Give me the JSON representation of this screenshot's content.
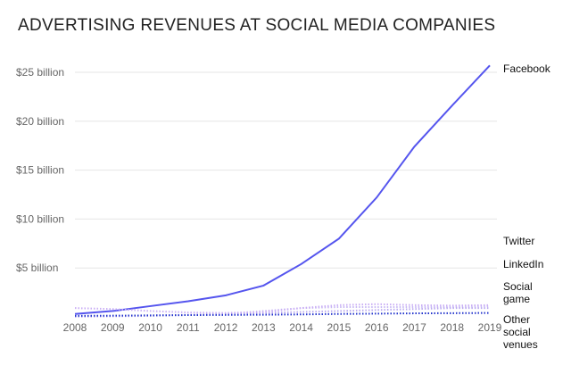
{
  "chart_data": {
    "type": "line",
    "title": "ADVERTISING REVENUES AT SOCIAL MEDIA COMPANIES",
    "xlabel": "",
    "ylabel": "",
    "x": [
      2008,
      2009,
      2010,
      2011,
      2012,
      2013,
      2014,
      2015,
      2016,
      2017,
      2018,
      2019
    ],
    "x_tick_labels": [
      "2008",
      "2009",
      "2010",
      "2011",
      "2012",
      "2013",
      "2014",
      "2015",
      "2016",
      "2017",
      "2018",
      "2019"
    ],
    "y_tick_values": [
      5,
      10,
      15,
      20,
      25
    ],
    "y_tick_labels": [
      "$5 billion",
      "$10 billion",
      "$15 billion",
      "$20 billion",
      "$25 billion"
    ],
    "ylim": [
      0,
      26
    ],
    "grid": true,
    "legend": "direct labels at right",
    "series": [
      {
        "name": "Facebook",
        "color": "#5555ee",
        "style": "solid",
        "values": [
          0.3,
          0.6,
          1.1,
          1.6,
          2.2,
          3.2,
          5.4,
          8.0,
          12.2,
          17.4,
          21.6,
          25.7
        ]
      },
      {
        "name": "Twitter",
        "color": "#c8b8f4",
        "style": "dotted",
        "values": [
          0.0,
          0.05,
          0.1,
          0.2,
          0.3,
          0.6,
          0.9,
          1.0,
          1.0,
          1.0,
          1.0,
          1.1
        ]
      },
      {
        "name": "LinkedIn",
        "color": "#b9a8f0",
        "style": "dotted",
        "values": [
          0.1,
          0.1,
          0.15,
          0.2,
          0.3,
          0.4,
          0.5,
          0.6,
          0.7,
          0.8,
          0.9,
          0.9
        ]
      },
      {
        "name": "Social\ngame",
        "color": "#c9aef5",
        "style": "dotted",
        "values": [
          0.9,
          0.8,
          0.6,
          0.45,
          0.4,
          0.5,
          0.9,
          1.2,
          1.3,
          1.2,
          1.15,
          1.2
        ]
      },
      {
        "name": "Other\nsocial\nvenues",
        "color": "#2233cc",
        "style": "dotted",
        "values": [
          0.1,
          0.12,
          0.15,
          0.18,
          0.2,
          0.22,
          0.25,
          0.3,
          0.33,
          0.36,
          0.38,
          0.4
        ]
      }
    ]
  }
}
